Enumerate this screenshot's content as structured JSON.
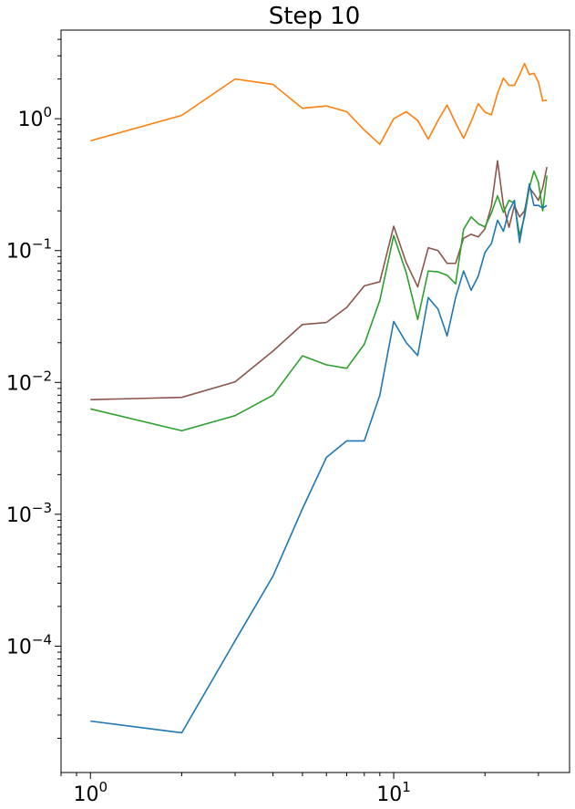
{
  "chart_data": {
    "type": "line",
    "title": "Step 10",
    "xlabel": "",
    "ylabel": "",
    "xscale": "log",
    "yscale": "log",
    "xlim": [
      0.8,
      38
    ],
    "ylim": [
      1.1e-05,
      4.7
    ],
    "grid": false,
    "x_ticks": [
      {
        "value": 1,
        "base": "10",
        "exp": "0"
      },
      {
        "value": 10,
        "base": "10",
        "exp": "1"
      }
    ],
    "y_ticks": [
      {
        "value": 0.0001,
        "base": "10",
        "exp": "−4"
      },
      {
        "value": 0.001,
        "base": "10",
        "exp": "−3"
      },
      {
        "value": 0.01,
        "base": "10",
        "exp": "−2"
      },
      {
        "value": 0.1,
        "base": "10",
        "exp": "−1"
      },
      {
        "value": 1,
        "base": "10",
        "exp": "0"
      }
    ],
    "series": [
      {
        "color": "#ff7f0e",
        "x": [
          1,
          2,
          3,
          4,
          5,
          6,
          7,
          8,
          9,
          10,
          11,
          12,
          13,
          14,
          15,
          16,
          17,
          18,
          19,
          20,
          21,
          22,
          23,
          24,
          25,
          26,
          27,
          28,
          29,
          30,
          31,
          32
        ],
        "y": [
          0.68,
          1.06,
          2.0,
          1.82,
          1.2,
          1.25,
          1.13,
          0.82,
          0.64,
          1.0,
          1.13,
          0.97,
          0.7,
          0.97,
          1.27,
          0.93,
          0.71,
          0.95,
          1.3,
          1.12,
          1.07,
          1.56,
          2.03,
          1.79,
          1.79,
          2.15,
          2.62,
          2.16,
          2.21,
          1.9,
          1.37,
          1.38
        ]
      },
      {
        "color": "#8c564b",
        "x": [
          1,
          2,
          3,
          4,
          5,
          6,
          7,
          8,
          9,
          10,
          11,
          12,
          13,
          14,
          15,
          16,
          17,
          18,
          19,
          20,
          21,
          22,
          23,
          24,
          25,
          26,
          27,
          28,
          29,
          30,
          31,
          32
        ],
        "y": [
          0.0074,
          0.0077,
          0.0101,
          0.0173,
          0.0275,
          0.0285,
          0.037,
          0.054,
          0.058,
          0.153,
          0.081,
          0.053,
          0.105,
          0.1,
          0.08,
          0.08,
          0.124,
          0.133,
          0.127,
          0.146,
          0.218,
          0.48,
          0.22,
          0.15,
          0.22,
          0.18,
          0.2,
          0.3,
          0.27,
          0.24,
          0.3,
          0.43
        ]
      },
      {
        "color": "#2ca02c",
        "x": [
          1,
          2,
          3,
          4,
          5,
          6,
          7,
          8,
          9,
          10,
          11,
          12,
          13,
          14,
          15,
          16,
          17,
          18,
          19,
          20,
          21,
          22,
          23,
          24,
          25,
          26,
          27,
          28,
          29,
          30,
          31,
          32
        ],
        "y": [
          0.0063,
          0.0043,
          0.0056,
          0.008,
          0.0159,
          0.0136,
          0.0128,
          0.0195,
          0.042,
          0.13,
          0.068,
          0.03,
          0.07,
          0.069,
          0.065,
          0.056,
          0.145,
          0.18,
          0.16,
          0.151,
          0.193,
          0.26,
          0.195,
          0.24,
          0.23,
          0.13,
          0.18,
          0.3,
          0.4,
          0.33,
          0.2,
          0.37
        ]
      },
      {
        "color": "#1f77b4",
        "x": [
          1,
          2,
          3,
          4,
          5,
          6,
          7,
          8,
          9,
          10,
          11,
          12,
          13,
          14,
          15,
          16,
          17,
          18,
          19,
          20,
          21,
          22,
          23,
          24,
          25,
          26,
          27,
          28,
          29,
          30,
          31,
          32
        ],
        "y": [
          2.7e-05,
          2.2e-05,
          0.00011,
          0.00034,
          0.0011,
          0.0027,
          0.0036,
          0.0036,
          0.008,
          0.029,
          0.02,
          0.016,
          0.044,
          0.036,
          0.0225,
          0.044,
          0.07,
          0.05,
          0.064,
          0.097,
          0.113,
          0.17,
          0.14,
          0.2,
          0.24,
          0.115,
          0.19,
          0.32,
          0.22,
          0.22,
          0.21,
          0.22
        ]
      }
    ]
  }
}
